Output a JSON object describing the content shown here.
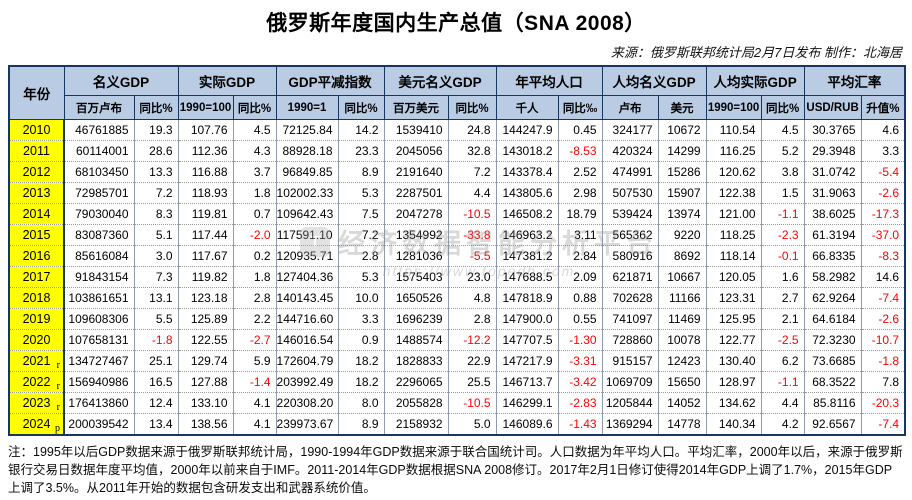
{
  "title": "俄罗斯年度国内生产总值（SNA 2008）",
  "source_note": "来源：俄罗斯联邦统计局2月7日发布  制作：北海居",
  "watermark": {
    "logo": "T",
    "text": "经济数据智能分析平台",
    "url": "https://www.topedb.com"
  },
  "colors": {
    "header_bg": "#b9cce4",
    "header_border": "#17375e",
    "year_bg": "#ffff00",
    "negative": "#ff0000",
    "grid": "#8f9bab"
  },
  "chart_data": {
    "type": "table",
    "title": "俄罗斯年度国内生产总值（SNA 2008）",
    "year_header": "年份",
    "column_groups": [
      {
        "label": "名义GDP",
        "subs": [
          "百万卢布",
          "同比%"
        ]
      },
      {
        "label": "实际GDP",
        "subs": [
          "1990=100",
          "同比%"
        ]
      },
      {
        "label": "GDP平减指数",
        "subs": [
          "1990=1",
          "同比%"
        ]
      },
      {
        "label": "美元名义GDP",
        "subs": [
          "百万美元",
          "同比%"
        ]
      },
      {
        "label": "年平均人口",
        "subs": [
          "千人",
          "同比‰"
        ]
      },
      {
        "label": "人均名义GDP",
        "subs": [
          "卢布",
          "美元"
        ]
      },
      {
        "label": "人均实际GDP",
        "subs": [
          "1990=100",
          "同比%"
        ]
      },
      {
        "label": "平均汇率",
        "subs": [
          "USD/RUB",
          "升值%"
        ]
      }
    ],
    "rows": [
      {
        "year": "2010",
        "flag": "",
        "values": [
          "46761885",
          "19.3",
          "107.76",
          "4.5",
          "72125.84",
          "14.2",
          "1539410",
          "24.8",
          "144247.9",
          "0.45",
          "324177",
          "10672",
          "110.54",
          "4.5",
          "30.3765",
          "4.6"
        ]
      },
      {
        "year": "2011",
        "flag": "",
        "values": [
          "60114001",
          "28.6",
          "112.36",
          "4.3",
          "88928.18",
          "23.3",
          "2045056",
          "32.8",
          "143018.2",
          "-8.53",
          "420324",
          "14299",
          "116.25",
          "5.2",
          "29.3948",
          "3.3"
        ]
      },
      {
        "year": "2012",
        "flag": "",
        "values": [
          "68103450",
          "13.3",
          "116.88",
          "3.7",
          "96849.85",
          "8.9",
          "2191640",
          "7.2",
          "143378.4",
          "2.52",
          "474991",
          "15286",
          "120.62",
          "3.8",
          "31.0742",
          "-5.4"
        ]
      },
      {
        "year": "2013",
        "flag": "",
        "values": [
          "72985701",
          "7.2",
          "118.93",
          "1.8",
          "102002.33",
          "5.3",
          "2287501",
          "4.4",
          "143805.6",
          "2.98",
          "507530",
          "15907",
          "122.38",
          "1.5",
          "31.9063",
          "-2.6"
        ]
      },
      {
        "year": "2014",
        "flag": "",
        "values": [
          "79030040",
          "8.3",
          "119.81",
          "0.7",
          "109642.43",
          "7.5",
          "2047278",
          "-10.5",
          "146508.2",
          "18.79",
          "539424",
          "13974",
          "121.00",
          "-1.1",
          "38.6025",
          "-17.3"
        ]
      },
      {
        "year": "2015",
        "flag": "",
        "values": [
          "83087360",
          "5.1",
          "117.44",
          "-2.0",
          "117591.10",
          "7.2",
          "1354992",
          "-33.8",
          "146963.2",
          "3.11",
          "565362",
          "9220",
          "118.25",
          "-2.3",
          "61.3194",
          "-37.0"
        ]
      },
      {
        "year": "2016",
        "flag": "",
        "values": [
          "85616084",
          "3.0",
          "117.67",
          "0.2",
          "120935.71",
          "2.8",
          "1281036",
          "-5.5",
          "147381.2",
          "2.84",
          "580916",
          "8692",
          "118.14",
          "-0.1",
          "66.8335",
          "-8.3"
        ]
      },
      {
        "year": "2017",
        "flag": "",
        "values": [
          "91843154",
          "7.3",
          "119.82",
          "1.8",
          "127404.36",
          "5.3",
          "1575403",
          "23.0",
          "147688.5",
          "2.09",
          "621871",
          "10667",
          "120.05",
          "1.6",
          "58.2982",
          "14.6"
        ]
      },
      {
        "year": "2018",
        "flag": "",
        "values": [
          "103861651",
          "13.1",
          "123.18",
          "2.8",
          "140143.45",
          "10.0",
          "1650526",
          "4.8",
          "147818.9",
          "0.88",
          "702628",
          "11166",
          "123.31",
          "2.7",
          "62.9264",
          "-7.4"
        ]
      },
      {
        "year": "2019",
        "flag": "",
        "values": [
          "109608306",
          "5.5",
          "125.89",
          "2.2",
          "144716.60",
          "3.3",
          "1696239",
          "2.8",
          "147900.0",
          "0.55",
          "741097",
          "11469",
          "125.95",
          "2.1",
          "64.6184",
          "-2.6"
        ]
      },
      {
        "year": "2020",
        "flag": "",
        "values": [
          "107658131",
          "-1.8",
          "122.55",
          "-2.7",
          "146016.54",
          "0.9",
          "1488574",
          "-12.2",
          "147707.5",
          "-1.30",
          "728860",
          "10078",
          "122.77",
          "-2.5",
          "72.3230",
          "-10.7"
        ]
      },
      {
        "year": "2021",
        "flag": "r",
        "values": [
          "134727467",
          "25.1",
          "129.74",
          "5.9",
          "172604.79",
          "18.2",
          "1828833",
          "22.9",
          "147217.9",
          "-3.31",
          "915157",
          "12423",
          "130.40",
          "6.2",
          "73.6685",
          "-1.8"
        ]
      },
      {
        "year": "2022",
        "flag": "r",
        "values": [
          "156940986",
          "16.5",
          "127.88",
          "-1.4",
          "203992.49",
          "18.2",
          "2296065",
          "25.5",
          "146713.7",
          "-3.42",
          "1069709",
          "15650",
          "128.97",
          "-1.1",
          "68.3522",
          "7.8"
        ]
      },
      {
        "year": "2023",
        "flag": "r",
        "values": [
          "176413860",
          "12.4",
          "133.10",
          "4.1",
          "220308.20",
          "8.0",
          "2055828",
          "-10.5",
          "146299.1",
          "-2.83",
          "1205844",
          "14052",
          "134.62",
          "4.4",
          "85.8116",
          "-20.3"
        ]
      },
      {
        "year": "2024",
        "flag": "p",
        "values": [
          "200039542",
          "13.4",
          "138.56",
          "4.1",
          "239973.67",
          "8.9",
          "2158932",
          "5.0",
          "146089.6",
          "-1.43",
          "1369294",
          "14778",
          "140.34",
          "4.2",
          "92.6567",
          "-7.4"
        ]
      }
    ]
  },
  "footnote": "注：1995年以后GDP数据来源于俄罗斯联邦统计局，1990-1994年GDP数据来源于联合国统计司。人口数据为年平均人口。平均汇率，2000年以后，来源于俄罗斯银行交易日数据年度平均值，2000年以前来自于IMF。2011-2014年GDP数据根据SNA 2008修订。2017年2月1日修订使得2014年GDP上调了1.7%，2015年GDP上调了3.5%。从2011年开始的数据包含研发支出和武器系统价值。"
}
